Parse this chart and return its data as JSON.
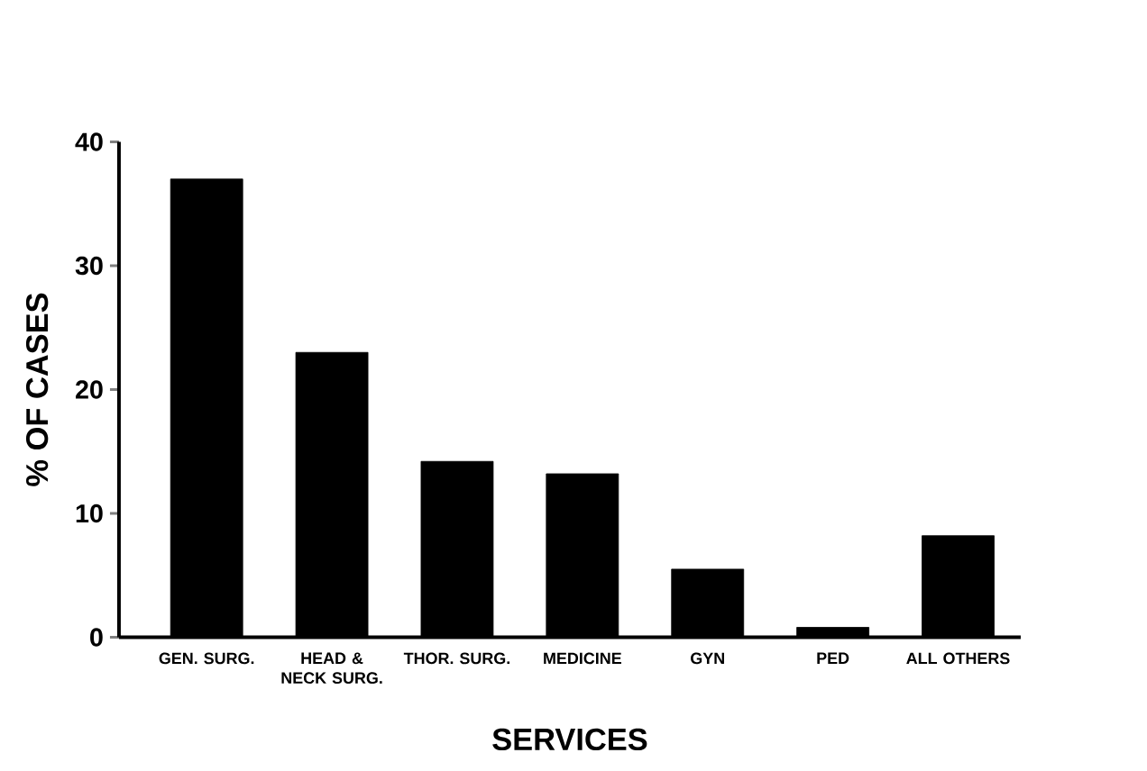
{
  "chart_data": {
    "type": "bar",
    "xlabel": "SERVICES",
    "ylabel": "% OF CASES",
    "categories": [
      "GEN. SURG.",
      "HEAD & NECK SURG.",
      "THOR. SURG.",
      "MEDICINE",
      "GYN",
      "PED",
      "ALL OTHERS"
    ],
    "values": [
      37,
      23,
      14.2,
      13.2,
      5.5,
      0.8,
      8.2
    ],
    "color": "#000000",
    "ylim": [
      0,
      40
    ],
    "yticks": [
      0,
      10,
      20,
      30,
      40
    ],
    "grid": false
  }
}
